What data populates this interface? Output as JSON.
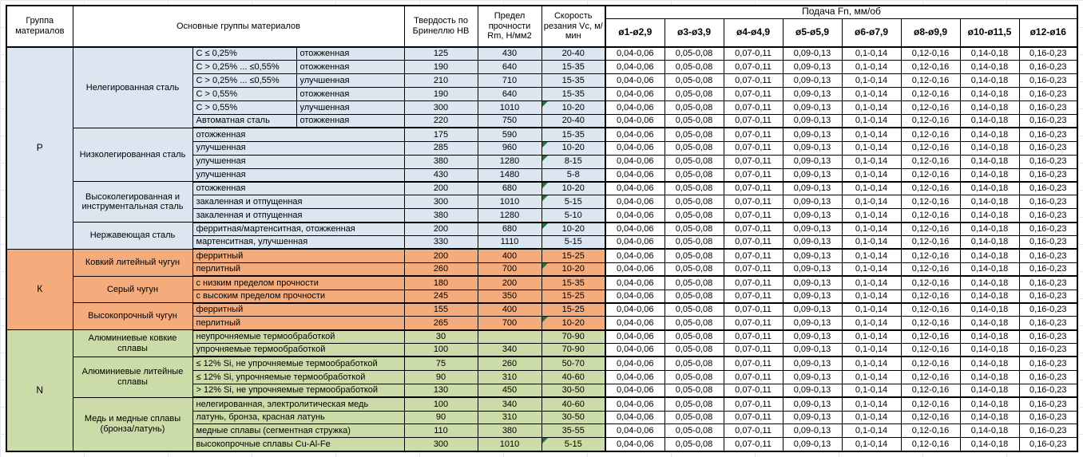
{
  "table": {
    "headers": {
      "group": "Группа материалов",
      "materials": "Основные группы материалов",
      "hb": "Твердость по Бринеллю HB",
      "rm": "Предел прочности Rm, Н/мм2",
      "vc": "Скорость резания Vc, м/мин",
      "feed_title": "Подача Fn, мм/об"
    },
    "feed_columns": [
      "ø1-ø2,9",
      "ø3-ø3,9",
      "ø4-ø4,9",
      "ø5-ø5,9",
      "ø6-ø7,9",
      "ø8-ø9,9",
      "ø10-ø11,5",
      "ø12-ø16"
    ],
    "feed_values": [
      "0,04-0,06",
      "0,05-0,08",
      "0,07-0,11",
      "0,09-0,13",
      "0,1-0,14",
      "0,12-0,16",
      "0,14-0,18",
      "0,16-0,23"
    ],
    "groups": [
      {
        "code": "P",
        "color": "#dce6f1",
        "subgroups": [
          {
            "name": "Нелегированная сталь",
            "split": true,
            "rows": [
              {
                "spec": "C ≤ 0,25%",
                "state": "отожженная",
                "hb": "125",
                "rm": "430",
                "vc": "20-40",
                "flag": false
              },
              {
                "spec": "C > 0,25% ... ≤0,55%",
                "state": "отожженная",
                "hb": "190",
                "rm": "640",
                "vc": "15-35",
                "flag": false
              },
              {
                "spec": "C > 0,25% ... ≤0,55%",
                "state": "улучшенная",
                "hb": "210",
                "rm": "710",
                "vc": "15-35",
                "flag": false
              },
              {
                "spec": "C > 0,55%",
                "state": "отожженная",
                "hb": "190",
                "rm": "640",
                "vc": "15-35",
                "flag": false
              },
              {
                "spec": "C > 0,55%",
                "state": "улучшенная",
                "hb": "300",
                "rm": "1010",
                "vc": "10-20",
                "flag": true
              },
              {
                "spec": "Автоматная сталь",
                "state": "отожженная",
                "hb": "220",
                "rm": "750",
                "vc": "20-40",
                "flag": false
              }
            ]
          },
          {
            "name": "Низколегированная сталь",
            "split": false,
            "rows": [
              {
                "state": "отожженная",
                "hb": "175",
                "rm": "590",
                "vc": "15-35",
                "flag": false
              },
              {
                "state": "улучшенная",
                "hb": "285",
                "rm": "960",
                "vc": "10-20",
                "flag": true
              },
              {
                "state": "улучшенная",
                "hb": "380",
                "rm": "1280",
                "vc": "8-15",
                "flag": true
              },
              {
                "state": "улучшенная",
                "hb": "430",
                "rm": "1480",
                "vc": "5-8",
                "flag": false
              }
            ]
          },
          {
            "name": "Высоколегированная и инструментальная сталь",
            "split": false,
            "rows": [
              {
                "state": "отожженная",
                "hb": "200",
                "rm": "680",
                "vc": "10-20",
                "flag": true
              },
              {
                "state": "закаленная и отпущенная",
                "hb": "300",
                "rm": "1010",
                "vc": "5-15",
                "flag": true
              },
              {
                "state": "закаленная и отпущенная",
                "hb": "380",
                "rm": "1280",
                "vc": "5-10",
                "flag": false
              }
            ]
          },
          {
            "name": "Нержавеющая сталь",
            "split": false,
            "rows": [
              {
                "state": "ферритная/мартенситная, отожженная",
                "hb": "200",
                "rm": "680",
                "vc": "10-20",
                "flag": true
              },
              {
                "state": "мартенситная, улучшенная",
                "hb": "330",
                "rm": "1110",
                "vc": "5-15",
                "flag": false
              }
            ]
          }
        ]
      },
      {
        "code": "К",
        "color": "#f4ac7d",
        "subgroups": [
          {
            "name": "Ковкий литейный чугун",
            "split": false,
            "rows": [
              {
                "state": "ферритный",
                "hb": "200",
                "rm": "400",
                "vc": "15-25",
                "flag": false
              },
              {
                "state": "перлитный",
                "hb": "260",
                "rm": "700",
                "vc": "10-20",
                "flag": true
              }
            ]
          },
          {
            "name": "Серый чугун",
            "split": false,
            "rows": [
              {
                "state": "с низким пределом прочности",
                "hb": "180",
                "rm": "200",
                "vc": "15-35",
                "flag": false
              },
              {
                "state": "с высоким пределом прочности",
                "hb": "245",
                "rm": "350",
                "vc": "15-25",
                "flag": false
              }
            ]
          },
          {
            "name": "Высокопрочный чугун",
            "split": false,
            "rows": [
              {
                "state": "ферритный",
                "hb": "155",
                "rm": "400",
                "vc": "15-25",
                "flag": false
              },
              {
                "state": "перлитный",
                "hb": "265",
                "rm": "700",
                "vc": "10-20",
                "flag": true
              }
            ]
          }
        ]
      },
      {
        "code": "N",
        "color": "#cbdca8",
        "subgroups": [
          {
            "name": "Алюминиевые ковкие сплавы",
            "split": false,
            "rows": [
              {
                "state": "неупрочняемые термообработкой",
                "hb": "30",
                "rm": "",
                "vc": "70-90",
                "flag": false
              },
              {
                "state": "упрочняемые термообработкой",
                "hb": "100",
                "rm": "340",
                "vc": "70-90",
                "flag": false
              }
            ]
          },
          {
            "name": "Алюминиевые литейные сплавы",
            "split": false,
            "rows": [
              {
                "state": "≤ 12% Si, не упрочняемые термообработкой",
                "hb": "75",
                "rm": "260",
                "vc": "50-70",
                "flag": false
              },
              {
                "state": "≤ 12% Si, упрочняемые термообработкой",
                "hb": "90",
                "rm": "310",
                "vc": "40-60",
                "flag": false
              },
              {
                "state": "> 12% Si, не упрочняемые термообработкой",
                "hb": "130",
                "rm": "450",
                "vc": "30-50",
                "flag": false
              }
            ]
          },
          {
            "name": "Медь и медные сплавы (бронза/латунь)",
            "split": false,
            "rows": [
              {
                "state": "нелегированная, электролитическая медь",
                "hb": "100",
                "rm": "340",
                "vc": "40-60",
                "flag": false
              },
              {
                "state": "латунь, бронза, красная латунь",
                "hb": "90",
                "rm": "310",
                "vc": "30-50",
                "flag": false
              },
              {
                "state": "медные сплавы (сегментная стружка)",
                "hb": "110",
                "rm": "380",
                "vc": "35-55",
                "flag": false
              },
              {
                "state": "высокопрочные сплавы Cu-Al-Fe",
                "hb": "300",
                "rm": "1010",
                "vc": "5-15",
                "flag": true
              }
            ]
          }
        ]
      }
    ]
  },
  "colors": {
    "steel_blue": "#dce6f1",
    "cast_iron_orange": "#f4ac7d",
    "nonferrous_green": "#cbdca8",
    "flag_green": "#1d7a36",
    "border_black": "#000000"
  }
}
